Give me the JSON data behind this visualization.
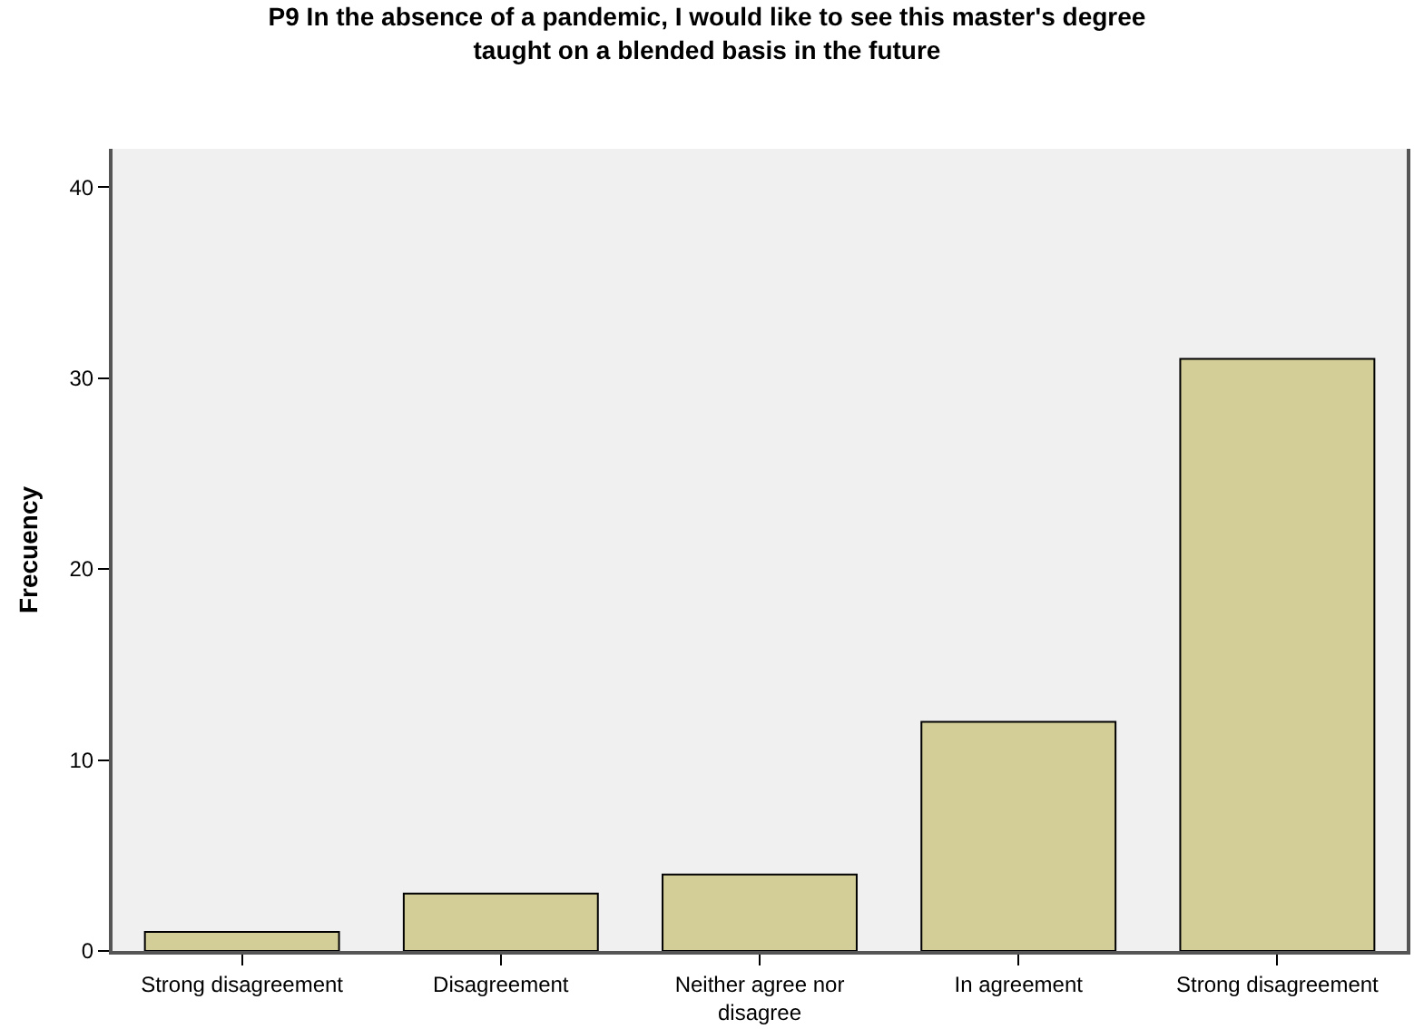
{
  "chart_data": {
    "type": "bar",
    "title": "P9 In the absence of a pandemic, I would like to see this master's degree taught on a blended basis in the future",
    "ylabel": "Frecuency",
    "categories": [
      "Strong disagreement",
      "Disagreement",
      "Neither agree nor disagree",
      "In agreement",
      "Strong disagreement"
    ],
    "values": [
      1,
      3,
      4,
      12,
      31
    ],
    "color": "#d3ce97",
    "ylim": [
      0,
      42
    ],
    "yticks": [
      0,
      10,
      20,
      30,
      40
    ],
    "grid": false,
    "legend": false
  }
}
